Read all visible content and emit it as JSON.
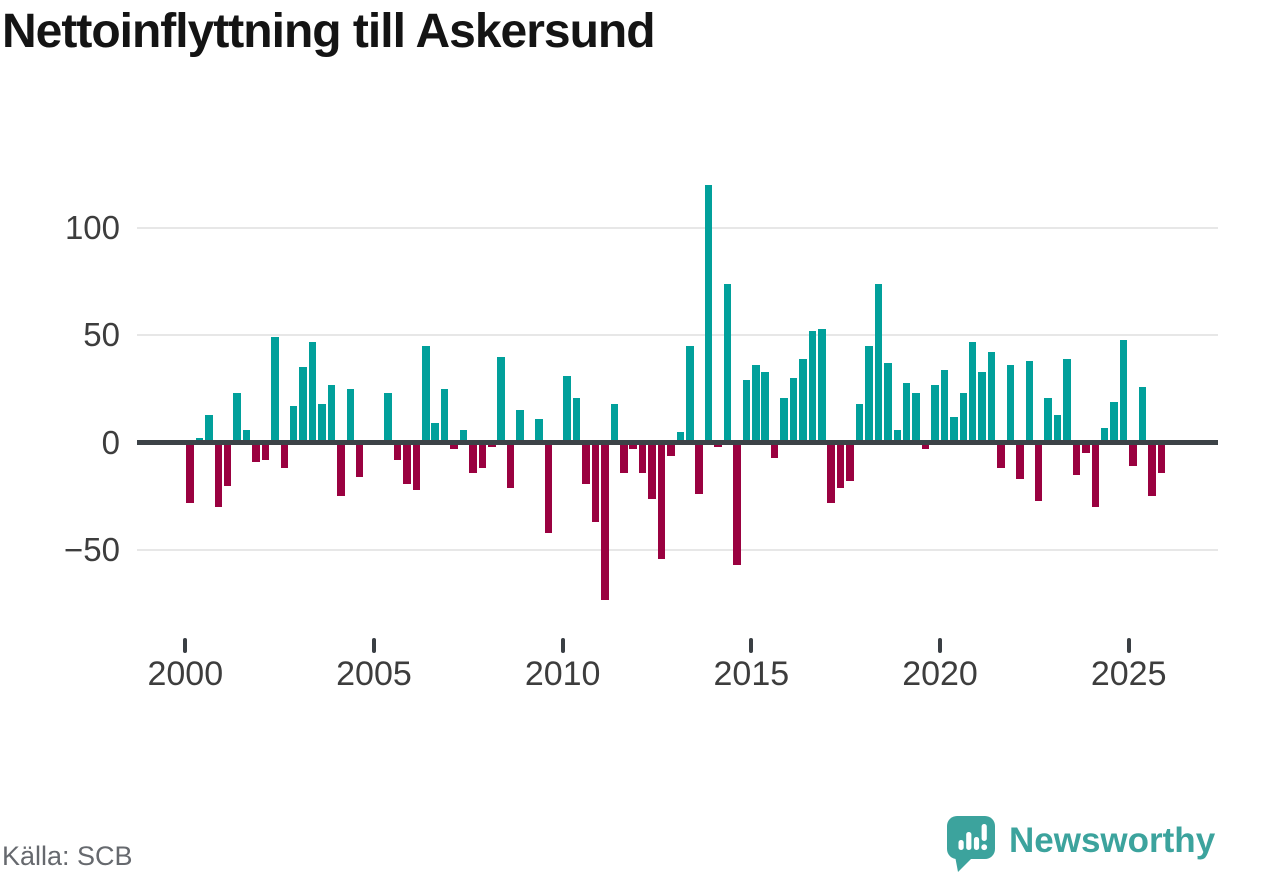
{
  "title": "Nettoinflyttning till Askersund",
  "source": {
    "label": "Källa: SCB"
  },
  "brand": {
    "name": "Newsworthy",
    "icon": "newsworthy-speech-bubble-bar-chart-icon"
  },
  "colors": {
    "positive_bar": "#01a09b",
    "negative_bar": "#9a0140",
    "zero_line": "#3c4247",
    "gridline": "#e7e7e7",
    "axis_text": "#3d3d3d",
    "source_text": "#66696e",
    "brand": "#3ca39d",
    "title": "#141414"
  },
  "y_axis": {
    "ticks": [
      {
        "value": 100,
        "label": "100"
      },
      {
        "value": 50,
        "label": "50"
      },
      {
        "value": 0,
        "label": "0"
      },
      {
        "value": -50,
        "label": "−50"
      }
    ]
  },
  "x_axis": {
    "years": [
      "2000",
      "2005",
      "2010",
      "2015",
      "2020",
      "2025"
    ]
  },
  "chart_data": {
    "type": "bar",
    "title": "Nettoinflyttning till Askersund",
    "frequency": "quarterly",
    "xlabel": "",
    "ylabel": "",
    "ylim": [
      -85,
      128
    ],
    "grid": "horizontal",
    "legend": "none",
    "gridline_values": [
      100,
      50,
      0,
      -50
    ],
    "quarters": [
      "2000-Q1",
      "2000-Q2",
      "2000-Q3",
      "2000-Q4",
      "2001-Q1",
      "2001-Q2",
      "2001-Q3",
      "2001-Q4",
      "2002-Q1",
      "2002-Q2",
      "2002-Q3",
      "2002-Q4",
      "2003-Q1",
      "2003-Q2",
      "2003-Q3",
      "2003-Q4",
      "2004-Q1",
      "2004-Q2",
      "2004-Q3",
      "2004-Q4",
      "2005-Q1",
      "2005-Q2",
      "2005-Q3",
      "2005-Q4",
      "2006-Q1",
      "2006-Q2",
      "2006-Q3",
      "2006-Q4",
      "2007-Q1",
      "2007-Q2",
      "2007-Q3",
      "2007-Q4",
      "2008-Q1",
      "2008-Q2",
      "2008-Q3",
      "2008-Q4",
      "2009-Q1",
      "2009-Q2",
      "2009-Q3",
      "2009-Q4",
      "2010-Q1",
      "2010-Q2",
      "2010-Q3",
      "2010-Q4",
      "2011-Q1",
      "2011-Q2",
      "2011-Q3",
      "2011-Q4",
      "2012-Q1",
      "2012-Q2",
      "2012-Q3",
      "2012-Q4",
      "2013-Q1",
      "2013-Q2",
      "2013-Q3",
      "2013-Q4",
      "2014-Q1",
      "2014-Q2",
      "2014-Q3",
      "2014-Q4",
      "2015-Q1",
      "2015-Q2",
      "2015-Q3",
      "2015-Q4",
      "2016-Q1",
      "2016-Q2",
      "2016-Q3",
      "2016-Q4",
      "2017-Q1",
      "2017-Q2",
      "2017-Q3",
      "2017-Q4",
      "2018-Q1",
      "2018-Q2",
      "2018-Q3",
      "2018-Q4",
      "2019-Q1",
      "2019-Q2",
      "2019-Q3",
      "2019-Q4",
      "2020-Q1",
      "2020-Q2",
      "2020-Q3",
      "2020-Q4",
      "2021-Q1",
      "2021-Q2",
      "2021-Q3",
      "2021-Q4",
      "2022-Q1",
      "2022-Q2",
      "2022-Q3",
      "2022-Q4",
      "2023-Q1",
      "2023-Q2",
      "2023-Q3",
      "2023-Q4",
      "2024-Q1",
      "2024-Q2",
      "2024-Q3",
      "2024-Q4",
      "2025-Q1",
      "2025-Q2",
      "2025-Q3",
      "2025-Q4"
    ],
    "values": [
      -28,
      2,
      13,
      -30,
      -20,
      23,
      6,
      -9,
      -8,
      49,
      -12,
      17,
      35,
      47,
      18,
      27,
      -25,
      25,
      -16,
      0,
      0,
      23,
      -8,
      -19,
      -22,
      45,
      9,
      25,
      -3,
      6,
      -14,
      -12,
      -2,
      40,
      -21,
      15,
      0,
      11,
      -42,
      0,
      31,
      21,
      -19,
      -37,
      -73,
      18,
      -14,
      -3,
      -14,
      -26,
      -54,
      -6,
      5,
      45,
      -24,
      120,
      -2,
      74,
      -57,
      29,
      36,
      33,
      -7,
      21,
      30,
      39,
      52,
      53,
      -28,
      -21,
      -18,
      18,
      45,
      74,
      37,
      6,
      28,
      23,
      -3,
      27,
      34,
      12,
      23,
      47,
      33,
      42,
      -12,
      36,
      -17,
      38,
      -27,
      21,
      13,
      39,
      -15,
      -5,
      -30,
      7,
      19,
      48,
      -11,
      26,
      -25,
      -14
    ]
  }
}
